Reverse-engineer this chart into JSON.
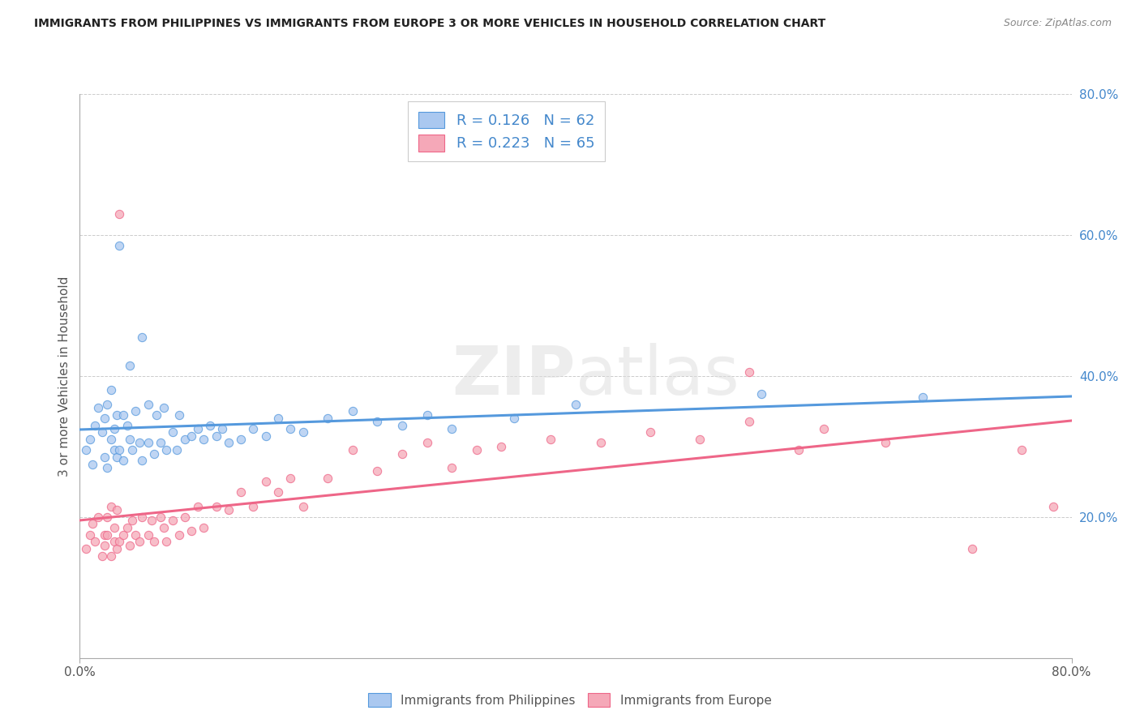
{
  "title": "IMMIGRANTS FROM PHILIPPINES VS IMMIGRANTS FROM EUROPE 3 OR MORE VEHICLES IN HOUSEHOLD CORRELATION CHART",
  "source": "Source: ZipAtlas.com",
  "ylabel": "3 or more Vehicles in Household",
  "legend_label_blue": "Immigrants from Philippines",
  "legend_label_pink": "Immigrants from Europe",
  "R_blue": 0.126,
  "N_blue": 62,
  "R_pink": 0.223,
  "N_pink": 65,
  "xlim": [
    0.0,
    0.8
  ],
  "ylim": [
    0.0,
    0.8
  ],
  "xtick_positions": [
    0.0,
    0.8
  ],
  "xtick_labels": [
    "0.0%",
    "80.0%"
  ],
  "ytick_positions": [
    0.2,
    0.4,
    0.6,
    0.8
  ],
  "ytick_labels": [
    "20.0%",
    "40.0%",
    "60.0%",
    "80.0%"
  ],
  "color_blue_fill": "#aac8f0",
  "color_pink_fill": "#f5a8b8",
  "color_blue_line": "#5599dd",
  "color_pink_line": "#ee6688",
  "color_blue_text": "#4488cc",
  "color_text": "#555555",
  "scatter_alpha": 0.75,
  "scatter_size": 55,
  "blue_x": [
    0.005,
    0.008,
    0.01,
    0.012,
    0.015,
    0.018,
    0.02,
    0.02,
    0.022,
    0.022,
    0.025,
    0.025,
    0.028,
    0.028,
    0.03,
    0.03,
    0.032,
    0.032,
    0.035,
    0.035,
    0.038,
    0.04,
    0.04,
    0.042,
    0.045,
    0.048,
    0.05,
    0.05,
    0.055,
    0.055,
    0.06,
    0.062,
    0.065,
    0.068,
    0.07,
    0.075,
    0.078,
    0.08,
    0.085,
    0.09,
    0.095,
    0.1,
    0.105,
    0.11,
    0.115,
    0.12,
    0.13,
    0.14,
    0.15,
    0.16,
    0.17,
    0.18,
    0.2,
    0.22,
    0.24,
    0.26,
    0.28,
    0.3,
    0.35,
    0.4,
    0.55,
    0.68
  ],
  "blue_y": [
    0.295,
    0.31,
    0.275,
    0.33,
    0.355,
    0.32,
    0.285,
    0.34,
    0.27,
    0.36,
    0.31,
    0.38,
    0.295,
    0.325,
    0.285,
    0.345,
    0.295,
    0.585,
    0.28,
    0.345,
    0.33,
    0.31,
    0.415,
    0.295,
    0.35,
    0.305,
    0.28,
    0.455,
    0.305,
    0.36,
    0.29,
    0.345,
    0.305,
    0.355,
    0.295,
    0.32,
    0.295,
    0.345,
    0.31,
    0.315,
    0.325,
    0.31,
    0.33,
    0.315,
    0.325,
    0.305,
    0.31,
    0.325,
    0.315,
    0.34,
    0.325,
    0.32,
    0.34,
    0.35,
    0.335,
    0.33,
    0.345,
    0.325,
    0.34,
    0.36,
    0.375,
    0.37
  ],
  "pink_x": [
    0.005,
    0.008,
    0.01,
    0.012,
    0.015,
    0.018,
    0.02,
    0.02,
    0.022,
    0.022,
    0.025,
    0.025,
    0.028,
    0.028,
    0.03,
    0.03,
    0.032,
    0.032,
    0.035,
    0.038,
    0.04,
    0.042,
    0.045,
    0.048,
    0.05,
    0.055,
    0.058,
    0.06,
    0.065,
    0.068,
    0.07,
    0.075,
    0.08,
    0.085,
    0.09,
    0.095,
    0.1,
    0.11,
    0.12,
    0.13,
    0.14,
    0.15,
    0.16,
    0.17,
    0.18,
    0.2,
    0.22,
    0.24,
    0.26,
    0.28,
    0.3,
    0.32,
    0.34,
    0.38,
    0.42,
    0.46,
    0.5,
    0.54,
    0.58,
    0.54,
    0.6,
    0.65,
    0.72,
    0.76,
    0.785
  ],
  "pink_y": [
    0.155,
    0.175,
    0.19,
    0.165,
    0.2,
    0.145,
    0.175,
    0.16,
    0.175,
    0.2,
    0.145,
    0.215,
    0.165,
    0.185,
    0.155,
    0.21,
    0.165,
    0.63,
    0.175,
    0.185,
    0.16,
    0.195,
    0.175,
    0.165,
    0.2,
    0.175,
    0.195,
    0.165,
    0.2,
    0.185,
    0.165,
    0.195,
    0.175,
    0.2,
    0.18,
    0.215,
    0.185,
    0.215,
    0.21,
    0.235,
    0.215,
    0.25,
    0.235,
    0.255,
    0.215,
    0.255,
    0.295,
    0.265,
    0.29,
    0.305,
    0.27,
    0.295,
    0.3,
    0.31,
    0.305,
    0.32,
    0.31,
    0.335,
    0.295,
    0.405,
    0.325,
    0.305,
    0.155,
    0.295,
    0.215
  ]
}
